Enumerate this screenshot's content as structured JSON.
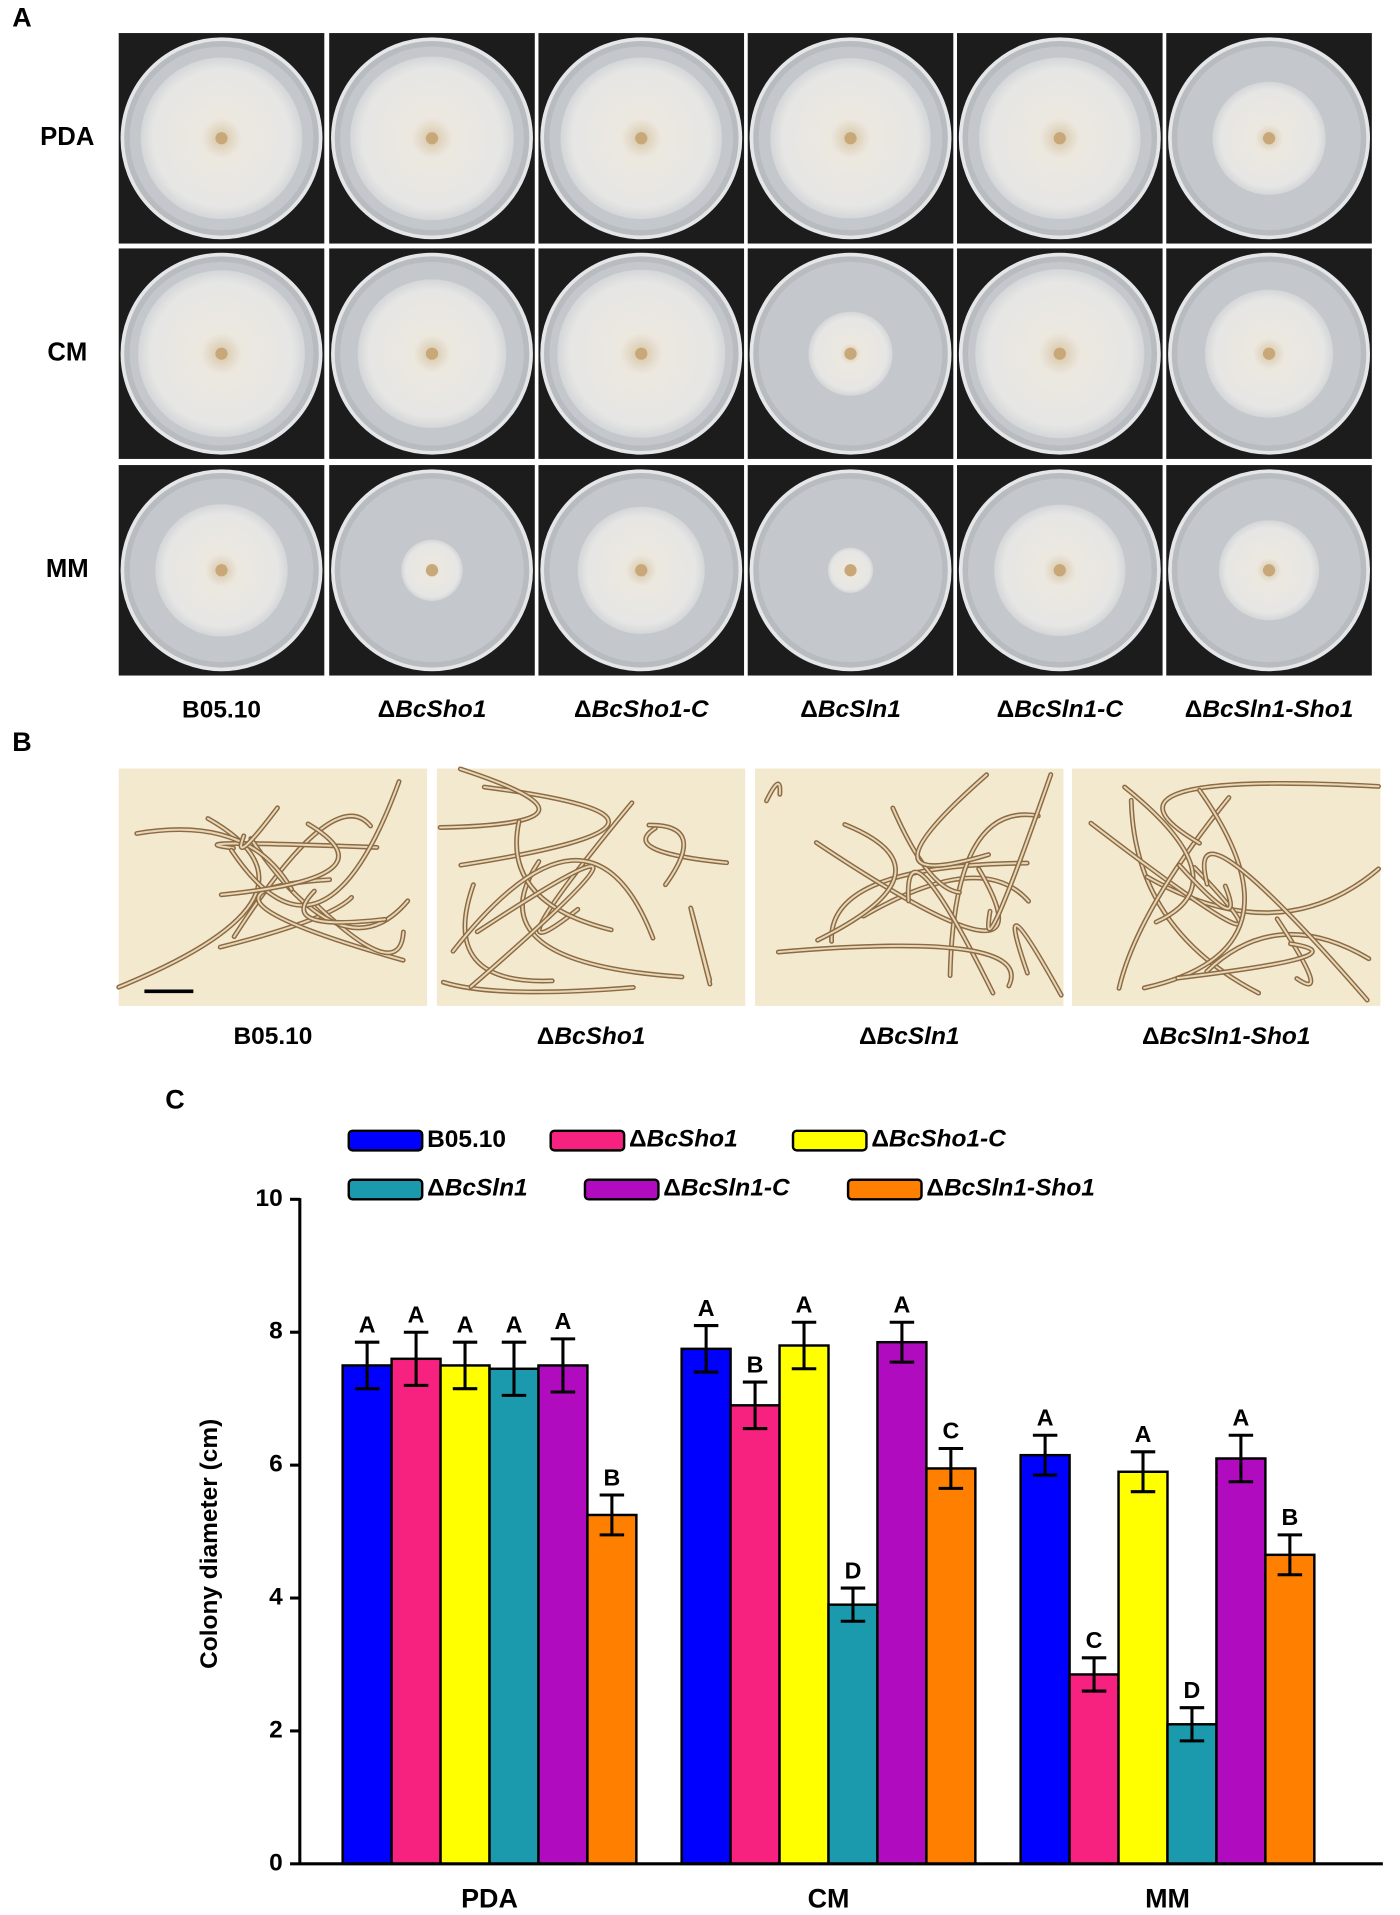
{
  "panel_a": {
    "label": "A",
    "rows": [
      "PDA",
      "CM",
      "MM"
    ],
    "columns": [
      "B05.10",
      "ΔBcSho1",
      "ΔBcSho1-C",
      "ΔBcSln1",
      "ΔBcSln1-C",
      "ΔBcSln1-Sho1"
    ]
  },
  "panel_b": {
    "label": "B",
    "columns": [
      "B05.10",
      "ΔBcSho1",
      "ΔBcSln1",
      "ΔBcSln1-Sho1"
    ]
  },
  "chart_data": {
    "type": "bar",
    "label": "C",
    "ylabel": "Colony diameter (cm)",
    "categories": [
      "PDA",
      "CM",
      "MM"
    ],
    "ylim": [
      0,
      10
    ],
    "yticks": [
      0,
      2,
      4,
      6,
      8,
      10
    ],
    "series": [
      {
        "name": "B05.10",
        "color": "#0000ff",
        "values": [
          7.5,
          7.75,
          6.15
        ],
        "errors": [
          0.35,
          0.35,
          0.3
        ],
        "letters": [
          "A",
          "A",
          "A"
        ]
      },
      {
        "name": "ΔBcSho1",
        "color": "#f7217f",
        "values": [
          7.6,
          6.9,
          2.85
        ],
        "errors": [
          0.4,
          0.35,
          0.25
        ],
        "letters": [
          "A",
          "B",
          "C"
        ]
      },
      {
        "name": "ΔBcSho1-C",
        "color": "#ffff00",
        "values": [
          7.5,
          7.8,
          5.9
        ],
        "errors": [
          0.35,
          0.35,
          0.3
        ],
        "letters": [
          "A",
          "A",
          "A"
        ]
      },
      {
        "name": "ΔBcSln1",
        "color": "#1b9aad",
        "values": [
          7.45,
          3.9,
          2.1
        ],
        "errors": [
          0.4,
          0.25,
          0.25
        ],
        "letters": [
          "A",
          "D",
          "D"
        ]
      },
      {
        "name": "ΔBcSln1-C",
        "color": "#b10bc0",
        "values": [
          7.5,
          7.85,
          6.1
        ],
        "errors": [
          0.4,
          0.3,
          0.35
        ],
        "letters": [
          "A",
          "A",
          "A"
        ]
      },
      {
        "name": "ΔBcSln1-Sho1",
        "color": "#ff7f00",
        "values": [
          5.25,
          5.95,
          4.65
        ],
        "errors": [
          0.3,
          0.3,
          0.3
        ],
        "letters": [
          "B",
          "C",
          "B"
        ]
      }
    ]
  }
}
